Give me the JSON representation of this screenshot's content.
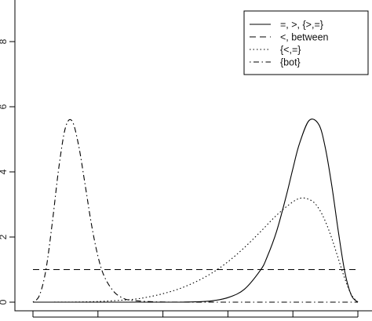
{
  "chart_data": {
    "type": "line",
    "title": "",
    "xlabel": "",
    "ylabel": "",
    "x_domain": [
      0,
      1
    ],
    "ylim": [
      0,
      9.2
    ],
    "y_ticks": [
      {
        "value": 0,
        "label": "0"
      },
      {
        "value": 2,
        "label": "2"
      },
      {
        "value": 4,
        "label": "4"
      },
      {
        "value": 6,
        "label": "6"
      },
      {
        "value": 8,
        "label": "8"
      }
    ],
    "x_ticks": [
      0,
      0.2,
      0.4,
      0.6,
      0.8,
      1.0
    ],
    "x_tick_labels_visible": false,
    "grid": false,
    "legend_position": "top-right",
    "series": [
      {
        "name": "=, >, {>,=}",
        "style": "solid",
        "x": [
          0,
          0.1,
          0.2,
          0.3,
          0.4,
          0.45,
          0.5,
          0.55,
          0.6,
          0.65,
          0.7,
          0.72,
          0.75,
          0.78,
          0.8,
          0.82,
          0.85,
          0.88,
          0.9,
          0.92,
          0.94,
          0.96,
          0.98,
          1.0
        ],
        "values": [
          0,
          0,
          0,
          0,
          0,
          0,
          0.01,
          0.04,
          0.14,
          0.39,
          0.98,
          1.37,
          2.18,
          3.28,
          4.1,
          4.86,
          5.58,
          5.45,
          4.73,
          3.56,
          2.16,
          0.92,
          0.21,
          0
        ]
      },
      {
        "name": "<, between",
        "style": "dashed",
        "x": [
          0,
          1.0
        ],
        "values": [
          1,
          1
        ]
      },
      {
        "name": "{<,=}",
        "style": "dotted",
        "x": [
          0,
          0.1,
          0.2,
          0.3,
          0.35,
          0.4,
          0.45,
          0.5,
          0.55,
          0.6,
          0.65,
          0.7,
          0.75,
          0.8,
          0.83,
          0.86,
          0.88,
          0.9,
          0.92,
          0.94,
          0.96,
          0.98,
          1.0
        ],
        "values": [
          0,
          0.001,
          0.02,
          0.08,
          0.15,
          0.26,
          0.41,
          0.62,
          0.89,
          1.24,
          1.67,
          2.16,
          2.67,
          3.08,
          3.2,
          3.1,
          2.87,
          2.48,
          1.95,
          1.33,
          0.72,
          0.23,
          0
        ]
      },
      {
        "name": "{bot}",
        "style": "dotdash",
        "x": [
          0,
          0.02,
          0.04,
          0.06,
          0.08,
          0.1,
          0.12,
          0.14,
          0.16,
          0.18,
          0.2,
          0.22,
          0.25,
          0.28,
          0.3,
          0.35,
          0.4,
          0.45,
          0.5,
          0.6,
          0.8,
          1.0
        ],
        "values": [
          0,
          0.21,
          1.0,
          2.48,
          4.16,
          5.36,
          5.57,
          4.84,
          3.64,
          2.39,
          1.41,
          0.78,
          0.31,
          0.11,
          0.06,
          0.02,
          0.005,
          0.002,
          0.001,
          0,
          0,
          0
        ]
      }
    ]
  }
}
